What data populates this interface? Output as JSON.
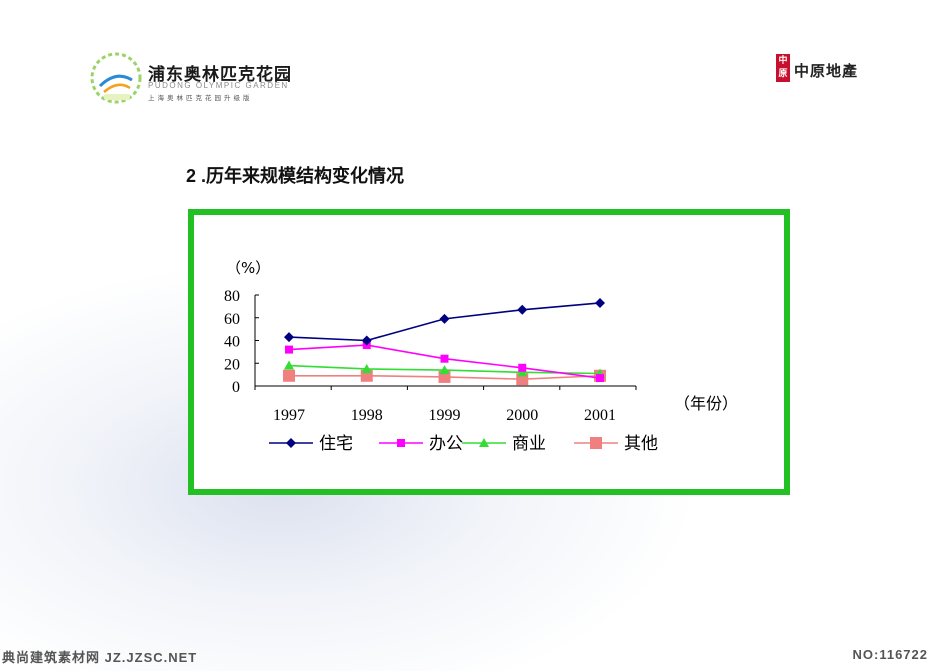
{
  "header": {
    "logo_title": "浦东奥林匹克花园",
    "logo_subtitle_en": "PUDONG OLYMPIC GARDEN",
    "logo_subtitle_cn": "上海奥林匹克花园升级版",
    "brand_seal": "中原",
    "brand_name": "中原地產"
  },
  "section": {
    "title": "2 .历年来规模结构变化情况"
  },
  "colors": {
    "frame": "#22c022",
    "series": [
      "#000080",
      "#ff00ff",
      "#33dd33",
      "#f08080"
    ]
  },
  "chart_data": {
    "type": "line",
    "title": "",
    "ylabel": "（%）",
    "xlabel": "（年份）",
    "x": [
      "1997",
      "1998",
      "1999",
      "2000",
      "2001"
    ],
    "yticks": [
      0,
      20,
      40,
      60,
      80
    ],
    "ylim": [
      0,
      80
    ],
    "grid": false,
    "legend": "bottom",
    "series": [
      {
        "name": "住宅",
        "marker": "diamond",
        "values": [
          43,
          40,
          59,
          67,
          73
        ]
      },
      {
        "name": "办公",
        "marker": "square",
        "values": [
          32,
          36,
          24,
          16,
          7
        ]
      },
      {
        "name": "商业",
        "marker": "triangle",
        "values": [
          18,
          15,
          14,
          12,
          11
        ]
      },
      {
        "name": "其他",
        "marker": "big-square",
        "values": [
          9,
          9,
          8,
          6,
          9
        ]
      }
    ]
  },
  "footer": {
    "left": "典尚建筑素材网 JZ.JZSC.NET",
    "right": "NO:116722"
  }
}
